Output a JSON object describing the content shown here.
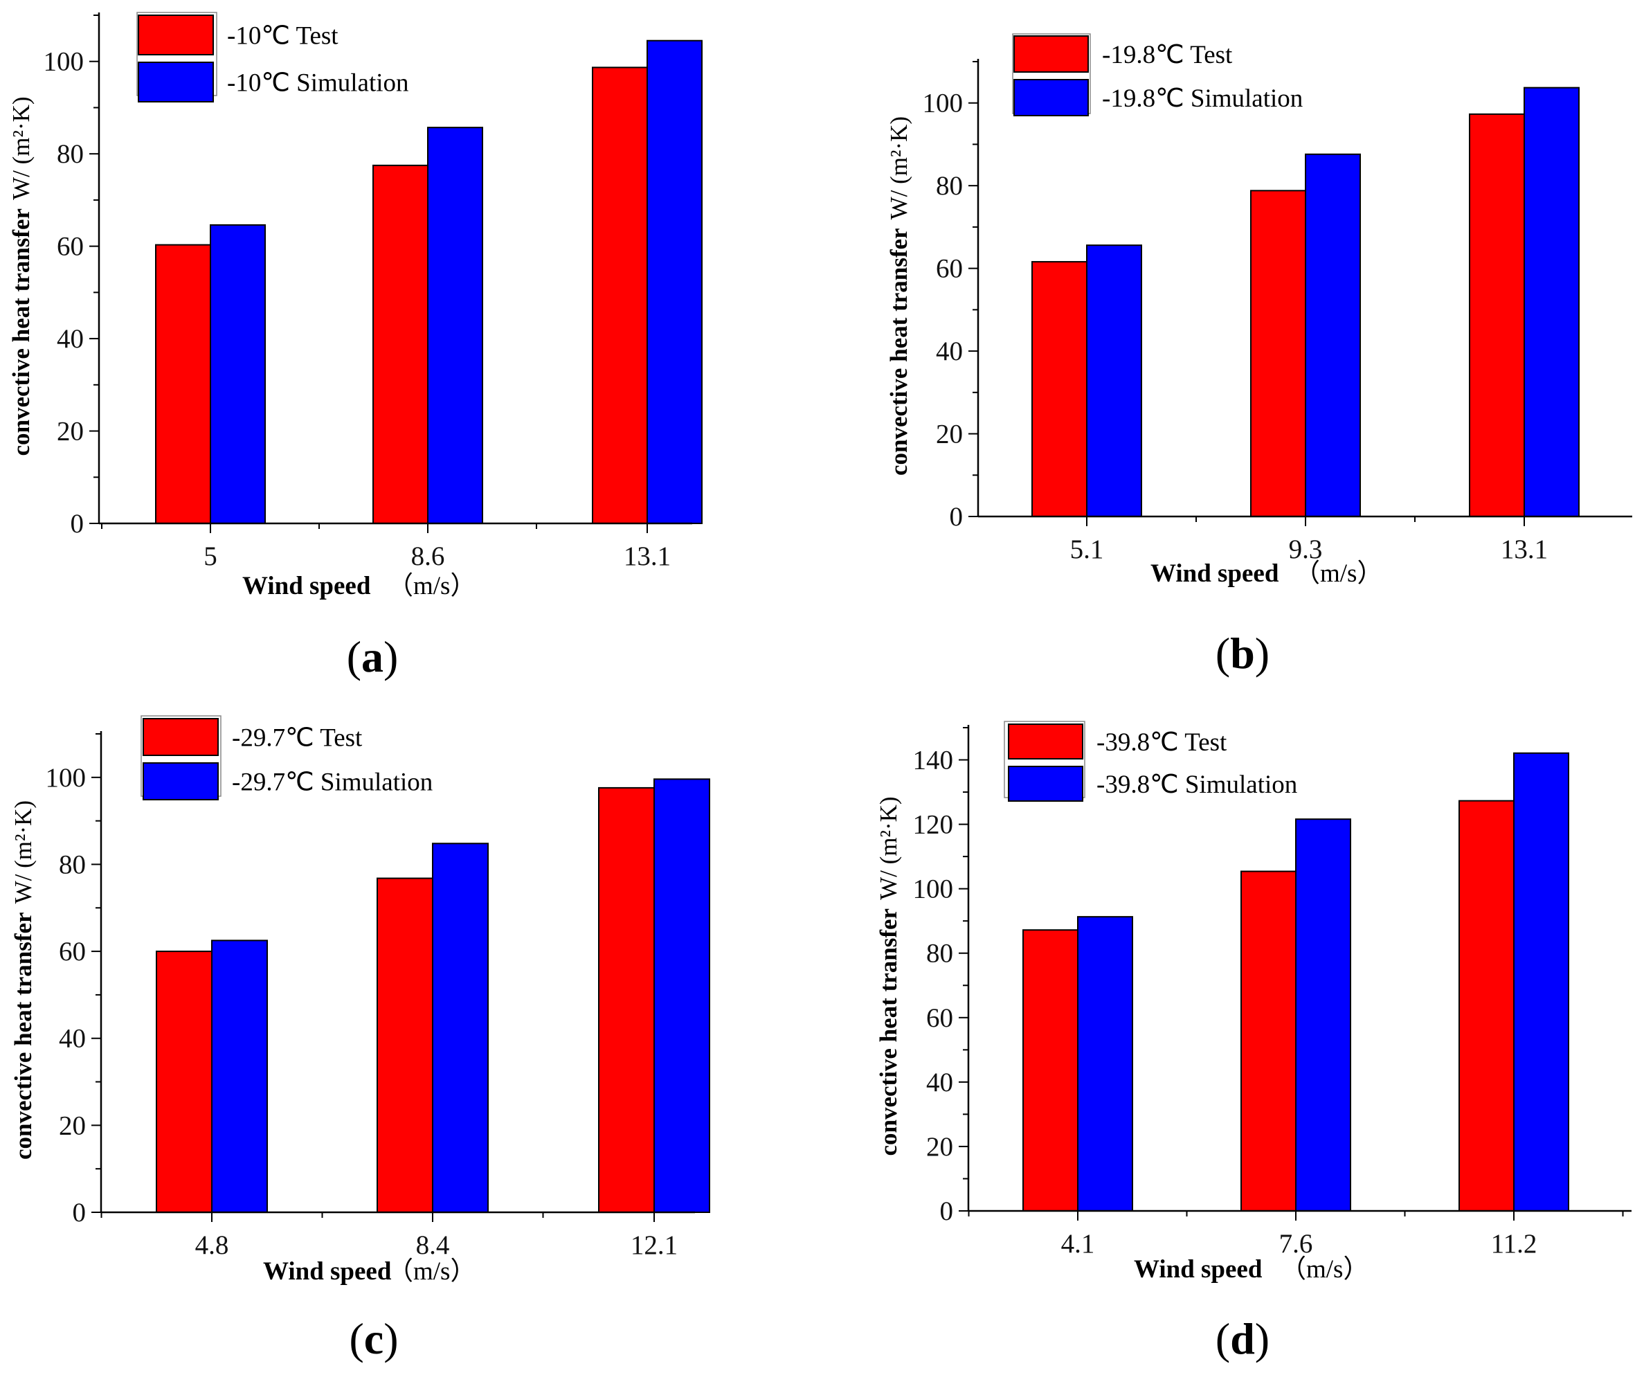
{
  "colors": {
    "test": "#ff0000",
    "simulation": "#0000ff",
    "axis": "#000000"
  },
  "ylabel_main": "convective heat transfer",
  "ylabel_unit": "W/ (m²·K)",
  "xlabel_main": "Wind speed",
  "xlabel_unit": "（m/s）",
  "chart_data": [
    {
      "type": "bar",
      "panel": "(a)",
      "panel_letter": "a",
      "categories": [
        "5",
        "8.6",
        "13.1"
      ],
      "series": [
        {
          "name": "-10℃ Test",
          "values": [
            60.3,
            77.5,
            98.7
          ]
        },
        {
          "name": "-10℃ Simulation",
          "values": [
            64.6,
            85.7,
            104.5
          ]
        }
      ],
      "yticks": [
        "0",
        "20",
        "40",
        "60",
        "80",
        "100"
      ],
      "ylim": [
        0,
        110
      ],
      "xlabel": "Wind speed（m/s）",
      "ylabel": "convective heat transfer W/ (m²·K)",
      "legend": "top-left"
    },
    {
      "type": "bar",
      "panel": "(b)",
      "panel_letter": "b",
      "categories": [
        "5.1",
        "9.3",
        "13.1"
      ],
      "series": [
        {
          "name": "-19.8℃ Test",
          "values": [
            61.6,
            78.8,
            97.3
          ]
        },
        {
          "name": "-19.8℃ Simulation",
          "values": [
            65.6,
            87.6,
            103.7
          ]
        }
      ],
      "yticks": [
        "0",
        "20",
        "40",
        "60",
        "80",
        "100"
      ],
      "ylim": [
        0,
        110
      ],
      "xlabel": "Wind speed（m/s）",
      "ylabel": "convective heat transfer W/ (m²·K)",
      "legend": "top-left"
    },
    {
      "type": "bar",
      "panel": "(c)",
      "panel_letter": "c",
      "categories": [
        "4.8",
        "8.4",
        "12.1"
      ],
      "series": [
        {
          "name": "-29.7℃ Test",
          "values": [
            60.0,
            76.8,
            97.6
          ]
        },
        {
          "name": "-29.7℃ Simulation",
          "values": [
            62.5,
            84.8,
            99.6
          ]
        }
      ],
      "yticks": [
        "0",
        "20",
        "40",
        "60",
        "80",
        "100"
      ],
      "ylim": [
        0,
        110
      ],
      "xlabel": "Wind speed（m/s）",
      "ylabel": "convective heat transfer W/ (m²·K)",
      "legend": "top-left"
    },
    {
      "type": "bar",
      "panel": "(d)",
      "panel_letter": "d",
      "categories": [
        "4.1",
        "7.6",
        "11.2"
      ],
      "series": [
        {
          "name": "-39.8℃ Test",
          "values": [
            87.2,
            105.4,
            127.3
          ]
        },
        {
          "name": "-39.8℃ Simulation",
          "values": [
            91.3,
            121.6,
            142.1
          ]
        }
      ],
      "yticks": [
        "0",
        "20",
        "40",
        "60",
        "80",
        "100",
        "120",
        "140"
      ],
      "ylim": [
        0,
        150
      ],
      "xlabel": "Wind speed（m/s）",
      "ylabel": "convective heat transfer W/ (m²·K)",
      "legend": "top-left"
    }
  ]
}
